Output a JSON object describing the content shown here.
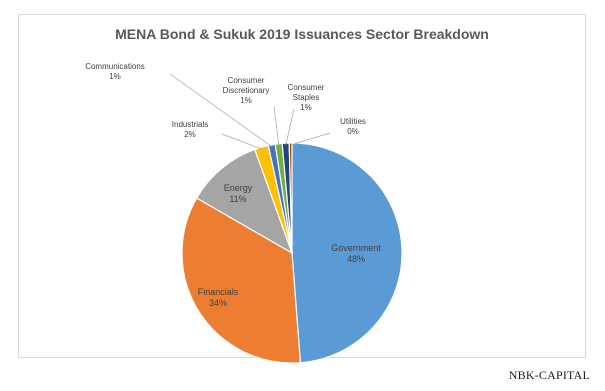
{
  "chart_data": {
    "type": "pie",
    "title": "MENA Bond & Sukuk 2019 Issuances Sector Breakdown",
    "slices": [
      {
        "label": "Government",
        "value": 48,
        "value_label": "48%",
        "color": "#5b9bd5"
      },
      {
        "label": "Financials",
        "value": 34,
        "value_label": "34%",
        "color": "#ed7d31"
      },
      {
        "label": "Energy",
        "value": 11,
        "value_label": "11%",
        "color": "#a5a5a5"
      },
      {
        "label": "Industrials",
        "value": 2,
        "value_label": "2%",
        "color": "#ffc000"
      },
      {
        "label": "Communications",
        "value": 1,
        "value_label": "1%",
        "color": "#4472c4"
      },
      {
        "label": "Consumer Discretionary",
        "value": 1,
        "value_label": "1%",
        "color": "#70ad47"
      },
      {
        "label": "Consumer Staples",
        "value": 1,
        "value_label": "1%",
        "color": "#264478"
      },
      {
        "label": "Utilities",
        "value": 0,
        "value_label": "0%",
        "color": "#9e480e"
      }
    ],
    "legend": "none"
  },
  "branding": {
    "logo_text": "NBK-CAPITAL"
  }
}
